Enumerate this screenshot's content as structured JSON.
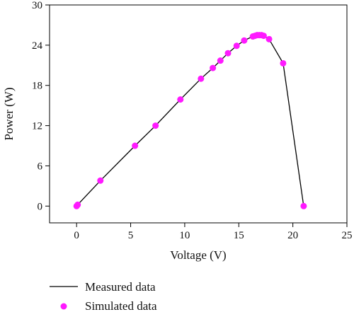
{
  "chart_data": {
    "type": "line",
    "xlabel": "Voltage (V)",
    "ylabel": "Power (W)",
    "xlim": [
      -2.5,
      25
    ],
    "ylim": [
      -2.5,
      30
    ],
    "xticks": [
      0,
      5,
      10,
      15,
      20,
      25
    ],
    "yticks": [
      0,
      6,
      12,
      18,
      24,
      30
    ],
    "legend_position": "bottom",
    "series": [
      {
        "name": "Measured data",
        "style": "line",
        "color": "#000000",
        "x": [
          0,
          0.1,
          2.2,
          5.4,
          7.3,
          9.6,
          11.5,
          12.6,
          13.3,
          14.0,
          14.8,
          15.5,
          16.3,
          16.5,
          16.7,
          16.9,
          17.1,
          17.3,
          17.8,
          19.1,
          21.0
        ],
        "y": [
          0,
          0.2,
          3.8,
          9.0,
          12.0,
          15.9,
          19.0,
          20.6,
          21.7,
          22.8,
          23.9,
          24.7,
          25.3,
          25.4,
          25.5,
          25.5,
          25.5,
          25.4,
          24.9,
          21.3,
          0
        ]
      },
      {
        "name": "Simulated data",
        "style": "scatter",
        "color": "#ff1aff",
        "x": [
          0,
          0.1,
          2.2,
          5.4,
          7.3,
          9.6,
          11.5,
          12.6,
          13.3,
          14.0,
          14.8,
          15.5,
          16.3,
          16.5,
          16.7,
          16.9,
          17.1,
          17.3,
          17.8,
          19.1,
          21.0
        ],
        "y": [
          0,
          0.2,
          3.8,
          9.0,
          12.0,
          15.9,
          19.0,
          20.6,
          21.7,
          22.8,
          23.9,
          24.7,
          25.3,
          25.4,
          25.5,
          25.5,
          25.5,
          25.4,
          24.9,
          21.3,
          0
        ]
      }
    ]
  }
}
